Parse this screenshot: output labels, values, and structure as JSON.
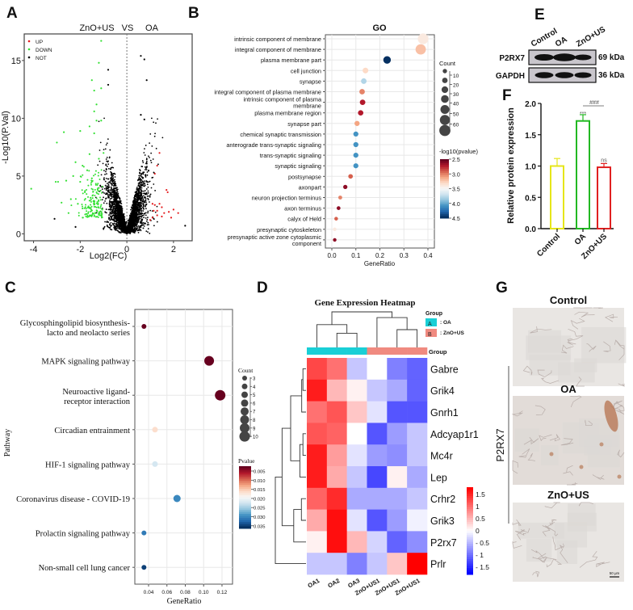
{
  "panels": {
    "A": "A",
    "B": "B",
    "C": "C",
    "D": "D",
    "E": "E",
    "F": "F",
    "G": "G"
  },
  "chart_data": [
    {
      "id": "A",
      "type": "scatter",
      "title_left": "ZnO+US",
      "title_mid": "VS",
      "title_right": "OA",
      "xlabel": "Log2(FC)",
      "ylabel": "-Log10(P.Val)",
      "xlim": [
        -4.4,
        2.8
      ],
      "ylim": [
        -0.6,
        17.3
      ],
      "xticks": [
        -4,
        -2,
        0,
        2
      ],
      "yticks": [
        0,
        5,
        10,
        15
      ],
      "legend": [
        {
          "name": "UP",
          "color": "#e41a1c"
        },
        {
          "name": "DOWN",
          "color": "#33e033"
        },
        {
          "name": "NOT",
          "color": "#000000"
        }
      ],
      "legend_position": "top-left",
      "threshold_line_x": 0,
      "series": {
        "DOWN": [
          [
            -4.1,
            3.9
          ],
          [
            -3.0,
            7.9
          ],
          [
            -2.7,
            8.8
          ],
          [
            -2.95,
            4.5
          ],
          [
            -3.05,
            4.5
          ],
          [
            -2.6,
            4.6
          ],
          [
            -2.8,
            2.7
          ],
          [
            -2.2,
            6.2
          ],
          [
            -2.0,
            8.9
          ],
          [
            -1.5,
            13.3
          ],
          [
            -1.2,
            14.8
          ],
          [
            -1.1,
            16.7
          ],
          [
            -1.4,
            12.4
          ],
          [
            -1.1,
            12.6
          ],
          [
            -1.3,
            11.2
          ],
          [
            -1.4,
            10.6
          ],
          [
            -1.3,
            9.8
          ],
          [
            -1.1,
            9.8
          ],
          [
            -1.4,
            8.7
          ],
          [
            -1.6,
            9.3
          ],
          [
            -1.9,
            5.9
          ],
          [
            -1.7,
            5.5
          ],
          [
            -2.3,
            5.0
          ],
          [
            -2.0,
            4.5
          ],
          [
            -1.8,
            3.6
          ],
          [
            -1.5,
            4.8
          ],
          [
            -1.2,
            6.5
          ],
          [
            -1.0,
            7.0
          ],
          [
            -1.6,
            6.9
          ],
          [
            -2.4,
            3.0
          ],
          [
            -2.5,
            1.8
          ],
          [
            -2.1,
            2.6
          ],
          [
            -1.9,
            2.2
          ]
        ],
        "UP": [
          [
            1.4,
            7.0
          ],
          [
            1.3,
            5.9
          ],
          [
            1.2,
            5.2
          ],
          [
            1.7,
            3.8
          ],
          [
            1.75,
            3.6
          ],
          [
            1.1,
            2.6
          ],
          [
            1.2,
            2.5
          ],
          [
            1.4,
            2.6
          ],
          [
            1.5,
            2.3
          ],
          [
            1.3,
            2.0
          ],
          [
            1.6,
            1.8
          ],
          [
            2.0,
            2.1
          ],
          [
            2.2,
            1.8
          ],
          [
            1.9,
            1.4
          ],
          [
            1.1,
            1.4
          ],
          [
            1.0,
            1.2
          ],
          [
            1.3,
            1.6
          ],
          [
            1.5,
            1.5
          ],
          [
            1.8,
            1.9
          ],
          [
            1.15,
            2.0
          ]
        ],
        "NOT_outliers": [
          [
            -0.8,
            14.2
          ],
          [
            -0.8,
            12.9
          ],
          [
            0.6,
            15.4
          ],
          [
            0.75,
            15.1
          ],
          [
            0.85,
            13.3
          ],
          [
            0.6,
            10.3
          ],
          [
            0.75,
            9.9
          ],
          [
            -3.1,
            1.3
          ],
          [
            2.5,
            0.7
          ],
          [
            -2.2,
            0.6
          ]
        ]
      },
      "not_cloud_count": 3200,
      "down_cluster_count": 160
    },
    {
      "id": "B",
      "type": "scatter",
      "title": "GO",
      "xlabel": "GeneRatio",
      "xlim": [
        -0.03,
        0.43
      ],
      "xticks": [
        "0.0",
        "0.1",
        "0.2",
        "0.3",
        "0.4"
      ],
      "size_legend_title": "Count",
      "size_legend": [
        "10",
        "20",
        "30",
        "40",
        "50",
        "60"
      ],
      "color_legend_title": "-log10(pvalue)",
      "color_legend": [
        "2.5",
        "3.0",
        "3.5",
        "4.0",
        "4.5"
      ],
      "color_range": [
        2.5,
        4.5
      ],
      "terms": [
        {
          "label": "intrinsic  component of membrane",
          "ratio": 0.38,
          "p": 3.4,
          "count": 66
        },
        {
          "label": "integral component of membrane",
          "ratio": 0.37,
          "p": 3.2,
          "count": 63
        },
        {
          "label": "plasma membrane part",
          "ratio": 0.23,
          "p": 4.5,
          "count": 38
        },
        {
          "label": "cell junction",
          "ratio": 0.14,
          "p": 3.3,
          "count": 22
        },
        {
          "label": "synapse",
          "ratio": 0.133,
          "p": 3.8,
          "count": 21
        },
        {
          "label": "integral component of plasma membrane",
          "ratio": 0.126,
          "p": 3.0,
          "count": 20
        },
        {
          "label": "intrinsic component of plasma|membrane",
          "ratio": 0.128,
          "p": 2.7,
          "count": 20
        },
        {
          "label": "plasma membrane region",
          "ratio": 0.12,
          "p": 2.7,
          "count": 19
        },
        {
          "label": "synapse part",
          "ratio": 0.105,
          "p": 3.1,
          "count": 17
        },
        {
          "label": "chemical synaptic transmission",
          "ratio": 0.1,
          "p": 4.1,
          "count": 16
        },
        {
          "label": "anterograde trans-synaptic signaling",
          "ratio": 0.1,
          "p": 4.1,
          "count": 16
        },
        {
          "label": "trans-synaptic signaling",
          "ratio": 0.1,
          "p": 4.1,
          "count": 16
        },
        {
          "label": "synaptic signaling",
          "ratio": 0.1,
          "p": 4.1,
          "count": 16
        },
        {
          "label": "postsynapse",
          "ratio": 0.078,
          "p": 2.9,
          "count": 12
        },
        {
          "label": "axonpart",
          "ratio": 0.056,
          "p": 2.6,
          "count": 9
        },
        {
          "label": "neuron projection terminus",
          "ratio": 0.035,
          "p": 3.0,
          "count": 6
        },
        {
          "label": "axon terminus",
          "ratio": 0.028,
          "p": 2.6,
          "count": 5
        },
        {
          "label": "calyx of Held",
          "ratio": 0.018,
          "p": 2.9,
          "count": 4
        },
        {
          "label": "presynaptic cytoskeleton",
          "ratio": 0.012,
          "p": 3.4,
          "count": 3
        },
        {
          "label": "presynaptic active zone cytoplasmic|component",
          "ratio": 0.012,
          "p": 2.6,
          "count": 3
        }
      ]
    },
    {
      "id": "C",
      "type": "scatter",
      "xlabel": "GeneRatio",
      "ylabel": "Pathway",
      "xlim": [
        0.025,
        0.131
      ],
      "xticks": [
        "0.04",
        "0.06",
        "0.08",
        "0.10",
        "0.12"
      ],
      "size_legend_title": "Count",
      "size_legend": [
        "3",
        "4",
        "5",
        "6",
        "7",
        "8",
        "9",
        "10"
      ],
      "color_legend_title": "Pvalue",
      "color_legend": [
        "0.005",
        "0.010",
        "0.015",
        "0.020",
        "0.025",
        "0.030",
        "0.035"
      ],
      "color_range": [
        0.003,
        0.037
      ],
      "pathways": [
        {
          "label": "Glycosphingolipid biosynthesis-|lacto and neolacto series",
          "ratio": 0.035,
          "p": 0.003,
          "count": 3
        },
        {
          "label": "MAPK signaling pathway",
          "ratio": 0.106,
          "p": 0.003,
          "count": 9
        },
        {
          "label": "Neuroactive ligand-|receptor interaction",
          "ratio": 0.118,
          "p": 0.003,
          "count": 10
        },
        {
          "label": "Circadian entrainment",
          "ratio": 0.047,
          "p": 0.017,
          "count": 4
        },
        {
          "label": "HIF-1 signaling pathway",
          "ratio": 0.047,
          "p": 0.023,
          "count": 4
        },
        {
          "label": "Coronavirus disease - COVID-19",
          "ratio": 0.071,
          "p": 0.031,
          "count": 6
        },
        {
          "label": "Prolactin signaling pathway",
          "ratio": 0.035,
          "p": 0.032,
          "count": 3
        },
        {
          "label": "Non-small cell lung cancer",
          "ratio": 0.035,
          "p": 0.036,
          "count": 3
        }
      ]
    },
    {
      "id": "D",
      "type": "heatmap",
      "title": "Gene Expression Heatmap",
      "group_legend_title": "Group",
      "group_legend": [
        {
          "key": "A",
          "label": ": OA",
          "color": "#19cfd6"
        },
        {
          "key": "B",
          "label": ": ZnO+US",
          "color": "#f08a80"
        }
      ],
      "group_row_label": "Group",
      "columns": [
        "OA1",
        "OA2",
        "OA3",
        "ZnO+US1",
        "ZnO+US1",
        "ZnO+US1"
      ],
      "column_groups": [
        "A",
        "A",
        "A",
        "B",
        "B",
        "B"
      ],
      "rows": [
        "Gabre",
        "Grik4",
        "Gnrh1",
        "Adcyap1r1",
        "Mc4r",
        "Lep",
        "Crhr2",
        "Grik3",
        "P2rx7",
        "Prlr"
      ],
      "values": [
        [
          1.3,
          1.0,
          -0.4,
          0.0,
          -0.9,
          -1.1
        ],
        [
          1.6,
          0.5,
          0.1,
          -0.4,
          -0.6,
          -1.1
        ],
        [
          1.0,
          1.2,
          0.4,
          -0.2,
          -1.2,
          -1.2
        ],
        [
          1.2,
          1.1,
          0.0,
          -1.2,
          -0.7,
          -0.4
        ],
        [
          1.6,
          0.7,
          -0.2,
          -0.7,
          -0.8,
          -0.4
        ],
        [
          1.6,
          0.6,
          -0.4,
          -1.3,
          0.1,
          -0.6
        ],
        [
          1.1,
          1.5,
          -0.6,
          -0.6,
          -0.6,
          -0.4
        ],
        [
          0.6,
          1.7,
          -0.2,
          -1.2,
          -0.7,
          -0.1
        ],
        [
          0.1,
          1.7,
          0.5,
          -0.3,
          -1.1,
          -0.8
        ],
        [
          -0.4,
          -0.4,
          -0.9,
          -0.4,
          0.4,
          1.8
        ]
      ],
      "color_range": [
        -1.8,
        1.8
      ],
      "colorbar_ticks": [
        "1.5",
        "1",
        "0.5",
        "0",
        "- 0.5",
        "- 1",
        "- 1.5"
      ]
    },
    {
      "id": "F",
      "type": "bar",
      "ylabel": "Relative protein expression",
      "categories": [
        "Control",
        "OA",
        "ZnO+US"
      ],
      "values": [
        1.0,
        1.72,
        0.98
      ],
      "errors": [
        0.12,
        0.1,
        0.06
      ],
      "colors": [
        "#e6e619",
        "#22b822",
        "#e02020"
      ],
      "ylim": [
        0,
        2.0
      ],
      "yticks": [
        "0.0",
        "0.5",
        "1.0",
        "1.5",
        "2.0"
      ],
      "annotations": {
        "OA": "***",
        "OA_vs_ZnO": "###",
        "ZnO+US": "ns"
      }
    }
  ],
  "western_blot": {
    "lanes": [
      "Control",
      "OA",
      "ZnO+US"
    ],
    "bands": [
      {
        "name": "P2RX7",
        "size": "69 kDa"
      },
      {
        "name": "GAPDH",
        "size": "36 kDa"
      }
    ]
  },
  "histology": {
    "stain": "P2RX7",
    "panels": [
      "Control",
      "OA",
      "ZnO+US"
    ],
    "scale_bar": "50 μm"
  }
}
